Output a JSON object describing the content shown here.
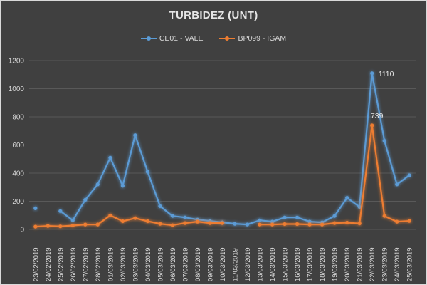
{
  "chart_data": {
    "type": "line",
    "title": "TURBIDEZ (UNT)",
    "ylim": [
      0,
      1200
    ],
    "yticks": [
      0,
      200,
      400,
      600,
      800,
      1000,
      1200
    ],
    "grid": true,
    "legend_position": "top",
    "categories": [
      "23/02/2019",
      "24/02/2019",
      "25/02/2019",
      "26/02/2019",
      "27/02/2019",
      "28/02/2019",
      "01/03/2019",
      "02/03/2019",
      "03/03/2019",
      "04/03/2019",
      "05/03/2019",
      "06/03/2019",
      "07/03/2019",
      "08/03/2019",
      "09/03/2019",
      "10/03/2019",
      "11/03/2019",
      "12/03/2019",
      "13/03/2019",
      "14/03/2019",
      "15/03/2019",
      "16/03/2019",
      "17/03/2019",
      "18/03/2019",
      "19/03/2019",
      "20/03/2019",
      "21/03/2019",
      "22/03/2019",
      "23/03/2019",
      "24/03/2019",
      "25/03/2019"
    ],
    "series": [
      {
        "name": "CE01 - VALE",
        "color": "#5b9bd5",
        "values": [
          150,
          null,
          130,
          65,
          210,
          320,
          510,
          310,
          670,
          410,
          165,
          95,
          85,
          70,
          60,
          50,
          40,
          35,
          65,
          55,
          85,
          85,
          55,
          50,
          95,
          225,
          160,
          1110,
          630,
          320,
          385
        ]
      },
      {
        "name": "BP099 - IGAM",
        "color": "#ed7d31",
        "values": [
          20,
          25,
          22,
          28,
          35,
          35,
          100,
          58,
          80,
          58,
          40,
          30,
          45,
          55,
          45,
          45,
          null,
          null,
          35,
          35,
          38,
          38,
          35,
          35,
          45,
          48,
          42,
          739,
          95,
          55,
          60
        ]
      }
    ],
    "data_labels": [
      {
        "series": 0,
        "category": "22/03/2019",
        "text": "1110"
      },
      {
        "series": 1,
        "category": "22/03/2019",
        "text": "739"
      }
    ]
  }
}
